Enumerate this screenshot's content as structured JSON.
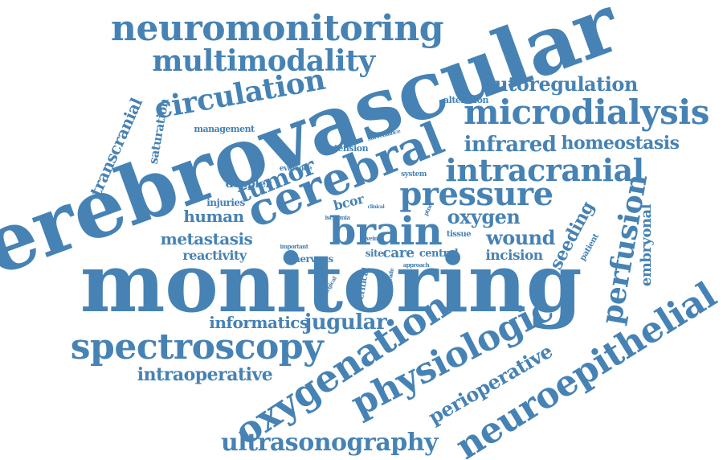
{
  "cloud": {
    "color": "#4682b4",
    "words": [
      {
        "key": "monitoring",
        "text": "monitoring"
      },
      {
        "key": "cerebrovascular",
        "text": "cerebrovascular"
      },
      {
        "key": "cerebral",
        "text": "cerebral"
      },
      {
        "key": "neuromonitoring",
        "text": "neuromonitoring"
      },
      {
        "key": "multimodality",
        "text": "multimodality"
      },
      {
        "key": "circulation",
        "text": "circulation"
      },
      {
        "key": "microdialysis",
        "text": "microdialysis"
      },
      {
        "key": "autoregulation",
        "text": "autoregulation"
      },
      {
        "key": "alteration",
        "text": "alteration"
      },
      {
        "key": "infrared",
        "text": "infrared"
      },
      {
        "key": "homeostasis",
        "text": "homeostasis"
      },
      {
        "key": "intracranial",
        "text": "intracranial"
      },
      {
        "key": "pressure",
        "text": "pressure"
      },
      {
        "key": "brain",
        "text": "brain"
      },
      {
        "key": "oxygen",
        "text": "oxygen"
      },
      {
        "key": "wound",
        "text": "wound"
      },
      {
        "key": "incision",
        "text": "incision"
      },
      {
        "key": "seeding",
        "text": "seeding"
      },
      {
        "key": "patient",
        "text": "patient"
      },
      {
        "key": "perfusion",
        "text": "perfusion"
      },
      {
        "key": "embryonal",
        "text": "embryonal"
      },
      {
        "key": "neuroepithelial",
        "text": "neuroepithelial"
      },
      {
        "key": "physiologic",
        "text": "physiologic"
      },
      {
        "key": "perioperative",
        "text": "perioperative"
      },
      {
        "key": "oxygenation",
        "text": "oxygenation"
      },
      {
        "key": "ultrasonography",
        "text": "ultrasonography"
      },
      {
        "key": "spectroscopy",
        "text": "spectroscopy"
      },
      {
        "key": "intraoperative",
        "text": "intraoperative"
      },
      {
        "key": "informatics",
        "text": "informatics"
      },
      {
        "key": "jugular",
        "text": "jugular"
      },
      {
        "key": "tumor",
        "text": "tumor"
      },
      {
        "key": "human",
        "text": "human"
      },
      {
        "key": "metastasis",
        "text": "metastasis"
      },
      {
        "key": "reactivity",
        "text": "reactivity"
      },
      {
        "key": "nervous",
        "text": "nervous"
      },
      {
        "key": "injuries",
        "text": "injuries"
      },
      {
        "key": "doppler",
        "text": "doppler"
      },
      {
        "key": "evidence",
        "text": "evidence"
      },
      {
        "key": "tension",
        "text": "tension"
      },
      {
        "key": "surveillance",
        "text": "surveillance"
      },
      {
        "key": "system",
        "text": "system"
      },
      {
        "key": "ischemia",
        "text": "ischemia"
      },
      {
        "key": "bcor",
        "text": "bcor"
      },
      {
        "key": "clinical",
        "text": "clinical"
      },
      {
        "key": "ptnet",
        "text": "ptnet"
      },
      {
        "key": "tissue",
        "text": "tissue"
      },
      {
        "key": "vein",
        "text": "vein"
      },
      {
        "key": "important",
        "text": "important"
      },
      {
        "key": "site",
        "text": "site"
      },
      {
        "key": "care",
        "text": "care"
      },
      {
        "key": "central",
        "text": "central"
      },
      {
        "key": "approach",
        "text": "approach"
      },
      {
        "key": "critical",
        "text": "critical"
      },
      {
        "key": "grade",
        "text": "grade"
      },
      {
        "key": "surgical",
        "text": "surgical"
      },
      {
        "key": "transcranial",
        "text": "transcranial"
      },
      {
        "key": "saturation",
        "text": "saturation"
      },
      {
        "key": "management",
        "text": "management"
      }
    ]
  }
}
